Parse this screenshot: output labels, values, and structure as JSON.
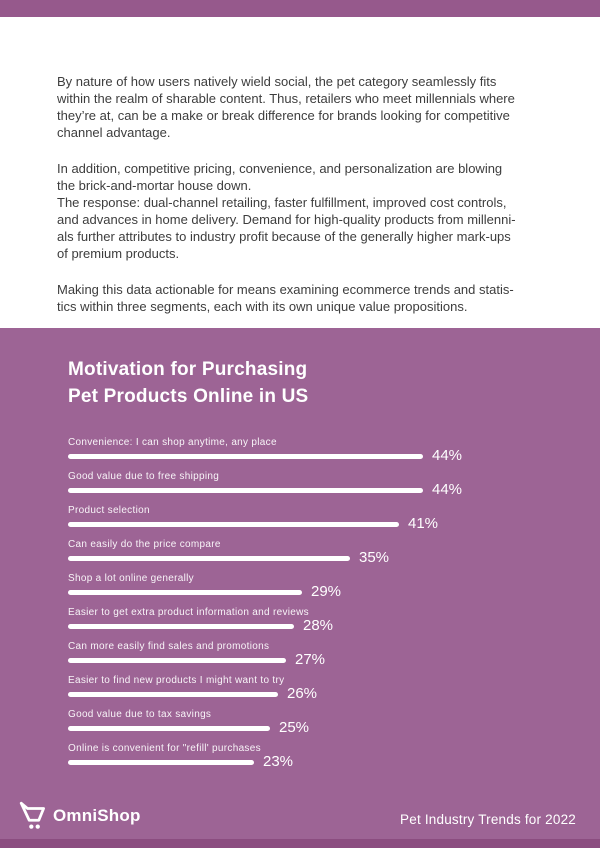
{
  "colors": {
    "top_bar": "#96598c",
    "section_purple": "#9d6495",
    "bottom_bar": "#8b4d80",
    "body_text": "#3d3d3d",
    "bar_fill": "#ffffff"
  },
  "intro": {
    "paragraphs": [
      {
        "lines": [
          "By nature of how users natively wield social, the pet category seamlessly fits",
          "within the realm of sharable content. Thus, retailers who meet millennials where",
          "they’re at, can be a make or break difference for brands looking for competitive",
          "channel advantage."
        ]
      },
      {
        "lines": [
          "In addition, competitive pricing, convenience, and personalization are blowing",
          "the brick-and-mortar house down.",
          "The response: dual-channel retailing, faster fulfillment, improved cost controls,",
          "and advances in home delivery. Demand for high-quality products from millenni-",
          "als further attributes to industry profit because of the generally higher mark-ups",
          "of premium products."
        ]
      },
      {
        "lines": [
          "Making this data actionable for means examining ecommerce trends and statis-",
          "tics within three segments, each with its own unique value propositions."
        ]
      }
    ]
  },
  "chart": {
    "title_lines": [
      "Motivation for Purchasing",
      "Pet Products Online in US"
    ],
    "items": [
      {
        "label": "Convenience: I can shop anytime, any place",
        "value": 44,
        "display": "44%"
      },
      {
        "label": "Good value due to free shipping",
        "value": 44,
        "display": "44%"
      },
      {
        "label": "Product selection",
        "value": 41,
        "display": "41%"
      },
      {
        "label": "Can easily do the price compare",
        "value": 35,
        "display": "35%"
      },
      {
        "label": "Shop a lot online generally",
        "value": 29,
        "display": "29%"
      },
      {
        "label": "Easier to get extra product information and reviews",
        "value": 28,
        "display": "28%"
      },
      {
        "label": "Can more easily find sales and promotions",
        "value": 27,
        "display": "27%"
      },
      {
        "label": "Easier to find new products I might want to try",
        "value": 26,
        "display": "26%"
      },
      {
        "label": "Good value due to tax savings",
        "value": 25,
        "display": "25%"
      },
      {
        "label": "Online is convenient for \"refill' purchases",
        "value": 23,
        "display": "23%"
      }
    ]
  },
  "chart_data": {
    "type": "bar",
    "orientation": "horizontal",
    "title": "Motivation for Purchasing Pet Products Online in US",
    "categories": [
      "Convenience: I can shop anytime, any place",
      "Good value due to free shipping",
      "Product selection",
      "Can easily do the price compare",
      "Shop a lot online generally",
      "Easier to get extra product information and reviews",
      "Can more easily find sales and promotions",
      "Easier to find new products I might want to try",
      "Good value due to tax savings",
      "Online is convenient for \"refill' purchases"
    ],
    "values": [
      44,
      44,
      41,
      35,
      29,
      28,
      27,
      26,
      25,
      23
    ],
    "value_suffix": "%",
    "xlim": [
      0,
      44
    ],
    "grid": false,
    "legend": false,
    "bar_color": "#ffffff",
    "background": "#9d6495"
  },
  "footer": {
    "brand": "OmniShop",
    "edition": "Pet Industry Trends for 2022"
  }
}
